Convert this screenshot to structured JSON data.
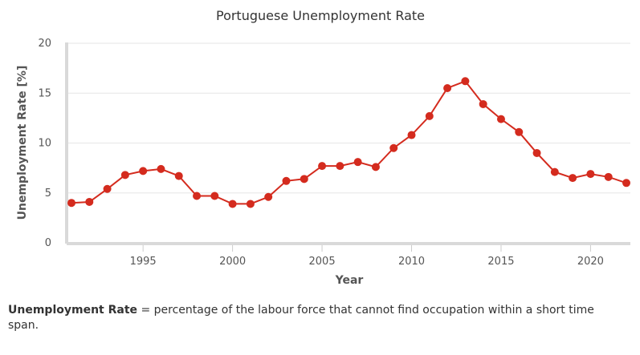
{
  "chart_data": {
    "type": "line",
    "title": "Portuguese Unemployment Rate",
    "xlabel": "Year",
    "ylabel": "Unemployment Rate [%]",
    "xlim": [
      1991,
      2022
    ],
    "ylim": [
      0,
      20
    ],
    "xticks": [
      1995,
      2000,
      2005,
      2010,
      2015,
      2020
    ],
    "yticks": [
      0,
      5,
      10,
      15,
      20
    ],
    "grid": true,
    "legend": "none",
    "series": [
      {
        "color": "#d42b1e",
        "x": [
          1991,
          1992,
          1993,
          1994,
          1995,
          1996,
          1997,
          1998,
          1999,
          2000,
          2001,
          2002,
          2003,
          2004,
          2005,
          2006,
          2007,
          2008,
          2009,
          2010,
          2011,
          2012,
          2013,
          2014,
          2015,
          2016,
          2017,
          2018,
          2019,
          2020,
          2021,
          2022
        ],
        "values": [
          4.0,
          4.1,
          5.4,
          6.8,
          7.2,
          7.4,
          6.7,
          4.7,
          4.7,
          3.9,
          3.9,
          4.6,
          6.2,
          6.4,
          7.7,
          7.7,
          8.1,
          7.6,
          9.5,
          10.8,
          12.7,
          15.5,
          16.2,
          13.9,
          12.4,
          11.1,
          9.0,
          7.1,
          6.5,
          6.9,
          6.6,
          6.0
        ]
      }
    ]
  },
  "footnote": {
    "term": "Unemployment Rate",
    "definition": " = percentage of the labour force that cannot find occupation within a short time span."
  }
}
